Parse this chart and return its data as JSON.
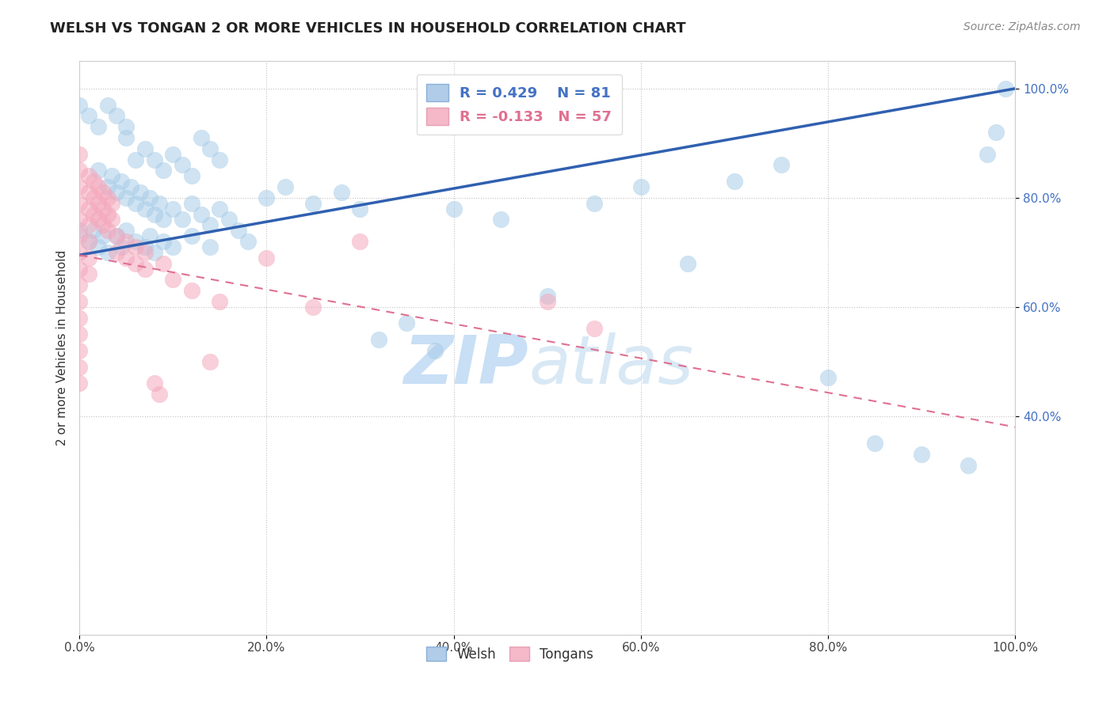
{
  "title": "WELSH VS TONGAN 2 OR MORE VEHICLES IN HOUSEHOLD CORRELATION CHART",
  "source": "Source: ZipAtlas.com",
  "ylabel": "2 or more Vehicles in Household",
  "x_min": 0.0,
  "x_max": 1.0,
  "y_min": 0.0,
  "y_max": 1.05,
  "x_ticks": [
    0.0,
    0.2,
    0.4,
    0.6,
    0.8,
    1.0
  ],
  "x_tick_labels": [
    "0.0%",
    "20.0%",
    "40.0%",
    "60.0%",
    "80.0%",
    "100.0%"
  ],
  "y_ticks": [
    0.4,
    0.6,
    0.8,
    1.0
  ],
  "y_tick_labels": [
    "40.0%",
    "60.0%",
    "80.0%",
    "100.0%"
  ],
  "welsh_R": 0.429,
  "welsh_N": 81,
  "tongan_R": -0.133,
  "tongan_N": 57,
  "welsh_color": "#A8CCE8",
  "tongan_color": "#F4A8BC",
  "welsh_line_color": "#3060B0",
  "tongan_line_color": "#E07090",
  "background_color": "#ffffff",
  "grid_color": "#cccccc",
  "watermark_zip": "ZIP",
  "watermark_atlas": "atlas",
  "watermark_color": "#c8dff5",
  "legend_R_color_welsh": "#4472C4",
  "legend_R_color_tongan": "#E07090",
  "welsh_line_x0": 0.0,
  "welsh_line_y0": 0.695,
  "welsh_line_x1": 1.0,
  "welsh_line_y1": 1.0,
  "tongan_line_x0": 0.0,
  "tongan_line_y0": 0.695,
  "tongan_line_x1": 1.0,
  "tongan_line_y1": 0.38,
  "welsh_scatter": [
    [
      0.0,
      0.97
    ],
    [
      0.01,
      0.95
    ],
    [
      0.02,
      0.93
    ],
    [
      0.03,
      0.97
    ],
    [
      0.04,
      0.95
    ],
    [
      0.05,
      0.91
    ],
    [
      0.05,
      0.93
    ],
    [
      0.06,
      0.87
    ],
    [
      0.07,
      0.89
    ],
    [
      0.08,
      0.87
    ],
    [
      0.09,
      0.85
    ],
    [
      0.1,
      0.88
    ],
    [
      0.11,
      0.86
    ],
    [
      0.12,
      0.84
    ],
    [
      0.13,
      0.91
    ],
    [
      0.14,
      0.89
    ],
    [
      0.15,
      0.87
    ],
    [
      0.02,
      0.85
    ],
    [
      0.03,
      0.82
    ],
    [
      0.035,
      0.84
    ],
    [
      0.04,
      0.81
    ],
    [
      0.045,
      0.83
    ],
    [
      0.05,
      0.8
    ],
    [
      0.055,
      0.82
    ],
    [
      0.06,
      0.79
    ],
    [
      0.065,
      0.81
    ],
    [
      0.07,
      0.78
    ],
    [
      0.075,
      0.8
    ],
    [
      0.08,
      0.77
    ],
    [
      0.085,
      0.79
    ],
    [
      0.09,
      0.76
    ],
    [
      0.1,
      0.78
    ],
    [
      0.11,
      0.76
    ],
    [
      0.12,
      0.79
    ],
    [
      0.13,
      0.77
    ],
    [
      0.14,
      0.75
    ],
    [
      0.15,
      0.78
    ],
    [
      0.16,
      0.76
    ],
    [
      0.0,
      0.74
    ],
    [
      0.01,
      0.72
    ],
    [
      0.015,
      0.74
    ],
    [
      0.02,
      0.71
    ],
    [
      0.025,
      0.73
    ],
    [
      0.03,
      0.7
    ],
    [
      0.04,
      0.73
    ],
    [
      0.045,
      0.71
    ],
    [
      0.05,
      0.74
    ],
    [
      0.06,
      0.72
    ],
    [
      0.07,
      0.71
    ],
    [
      0.075,
      0.73
    ],
    [
      0.08,
      0.7
    ],
    [
      0.09,
      0.72
    ],
    [
      0.1,
      0.71
    ],
    [
      0.12,
      0.73
    ],
    [
      0.14,
      0.71
    ],
    [
      0.17,
      0.74
    ],
    [
      0.18,
      0.72
    ],
    [
      0.2,
      0.8
    ],
    [
      0.22,
      0.82
    ],
    [
      0.25,
      0.79
    ],
    [
      0.28,
      0.81
    ],
    [
      0.3,
      0.78
    ],
    [
      0.32,
      0.54
    ],
    [
      0.35,
      0.57
    ],
    [
      0.38,
      0.52
    ],
    [
      0.4,
      0.78
    ],
    [
      0.45,
      0.76
    ],
    [
      0.5,
      0.62
    ],
    [
      0.55,
      0.79
    ],
    [
      0.6,
      0.82
    ],
    [
      0.65,
      0.68
    ],
    [
      0.7,
      0.83
    ],
    [
      0.75,
      0.86
    ],
    [
      0.8,
      0.47
    ],
    [
      0.85,
      0.35
    ],
    [
      0.9,
      0.33
    ],
    [
      0.95,
      0.31
    ],
    [
      0.99,
      1.0
    ],
    [
      0.98,
      0.92
    ],
    [
      0.97,
      0.88
    ]
  ],
  "tongan_scatter": [
    [
      0.0,
      0.88
    ],
    [
      0.0,
      0.85
    ],
    [
      0.0,
      0.82
    ],
    [
      0.0,
      0.79
    ],
    [
      0.0,
      0.76
    ],
    [
      0.0,
      0.73
    ],
    [
      0.0,
      0.7
    ],
    [
      0.0,
      0.67
    ],
    [
      0.0,
      0.64
    ],
    [
      0.0,
      0.61
    ],
    [
      0.0,
      0.58
    ],
    [
      0.0,
      0.55
    ],
    [
      0.0,
      0.52
    ],
    [
      0.0,
      0.49
    ],
    [
      0.0,
      0.46
    ],
    [
      0.01,
      0.84
    ],
    [
      0.01,
      0.81
    ],
    [
      0.01,
      0.78
    ],
    [
      0.01,
      0.75
    ],
    [
      0.01,
      0.72
    ],
    [
      0.01,
      0.69
    ],
    [
      0.01,
      0.66
    ],
    [
      0.015,
      0.83
    ],
    [
      0.015,
      0.8
    ],
    [
      0.015,
      0.77
    ],
    [
      0.02,
      0.82
    ],
    [
      0.02,
      0.79
    ],
    [
      0.02,
      0.76
    ],
    [
      0.025,
      0.81
    ],
    [
      0.025,
      0.78
    ],
    [
      0.025,
      0.75
    ],
    [
      0.03,
      0.8
    ],
    [
      0.03,
      0.77
    ],
    [
      0.03,
      0.74
    ],
    [
      0.035,
      0.79
    ],
    [
      0.035,
      0.76
    ],
    [
      0.04,
      0.73
    ],
    [
      0.04,
      0.7
    ],
    [
      0.05,
      0.72
    ],
    [
      0.05,
      0.69
    ],
    [
      0.06,
      0.71
    ],
    [
      0.06,
      0.68
    ],
    [
      0.07,
      0.7
    ],
    [
      0.07,
      0.67
    ],
    [
      0.08,
      0.46
    ],
    [
      0.085,
      0.44
    ],
    [
      0.09,
      0.68
    ],
    [
      0.1,
      0.65
    ],
    [
      0.12,
      0.63
    ],
    [
      0.14,
      0.5
    ],
    [
      0.15,
      0.61
    ],
    [
      0.2,
      0.69
    ],
    [
      0.25,
      0.6
    ],
    [
      0.3,
      0.72
    ],
    [
      0.5,
      0.61
    ],
    [
      0.55,
      0.56
    ]
  ]
}
